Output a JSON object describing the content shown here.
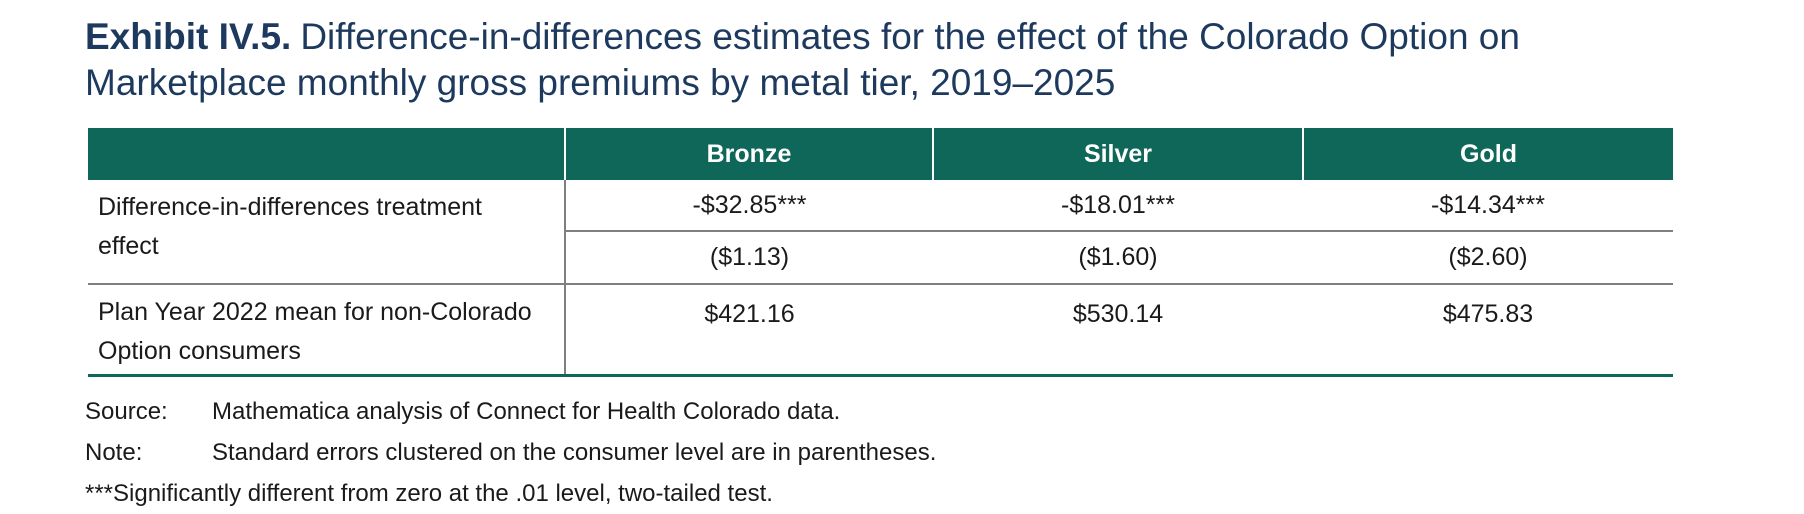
{
  "exhibit": {
    "label": "Exhibit IV.5.",
    "title": "Difference-in-differences estimates for the effect of the Colorado Option on Marketplace monthly gross premiums by metal tier, 2019–2025"
  },
  "table": {
    "header": {
      "blank": "",
      "bronze": "Bronze",
      "silver": "Silver",
      "gold": "Gold"
    },
    "treatment_row": {
      "label": "Difference-in-differences treatment effect",
      "estimate_bronze": "-$32.85***",
      "estimate_silver": "-$18.01***",
      "estimate_gold": "-$14.34***",
      "se_bronze": "($1.13)",
      "se_silver": "($1.60)",
      "se_gold": "($2.60)"
    },
    "mean_row": {
      "label": "Plan Year 2022 mean for non-Colorado Option consumers",
      "bronze": "$421.16",
      "silver": "$530.14",
      "gold": "$475.83"
    }
  },
  "notes": {
    "source_label": "Source:",
    "source_text": "Mathematica analysis of Connect for Health Colorado data.",
    "note_label": "Note:",
    "note_text": "Standard errors clustered on the consumer level are in parentheses.",
    "significance_text": "***Significantly different from zero at the .01 level, two-tailed test."
  },
  "colors": {
    "header_teal": "#0e6758",
    "title_navy": "#1d3a5e",
    "rule_gray": "#7f7f7f",
    "header_text_white": "#ffffff",
    "body_text": "#1a1a1a"
  }
}
